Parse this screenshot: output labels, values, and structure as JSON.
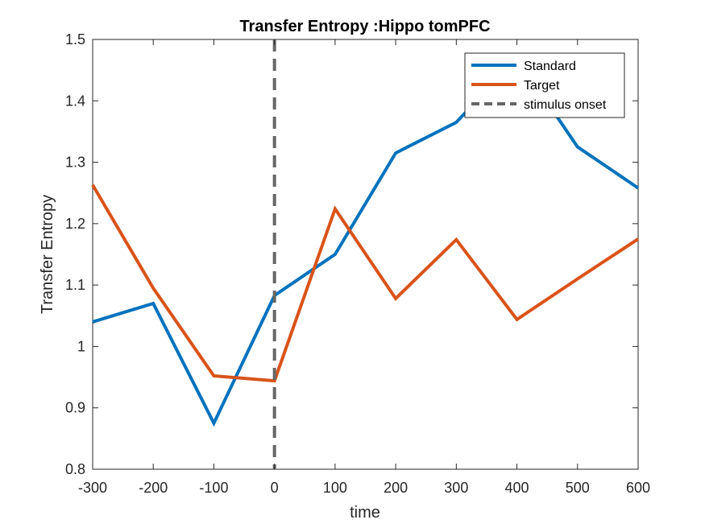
{
  "chart_data": {
    "type": "line",
    "title": "Transfer Entropy :Hippo tomPFC",
    "xlabel": "time",
    "ylabel": "Transfer Entropy",
    "xlim": [
      -300,
      600
    ],
    "ylim": [
      0.8,
      1.5
    ],
    "xticks": [
      -300,
      -200,
      -100,
      0,
      100,
      200,
      300,
      400,
      500,
      600
    ],
    "xtick_labels": [
      "-300",
      "-200",
      "-100",
      "0",
      "100",
      "200",
      "300",
      "400",
      "500",
      "600"
    ],
    "yticks": [
      0.8,
      0.9,
      1.0,
      1.1,
      1.2,
      1.3,
      1.4,
      1.5
    ],
    "ytick_labels": [
      "0.8",
      "0.9",
      "1",
      "1.1",
      "1.2",
      "1.3",
      "1.4",
      "1.5"
    ],
    "x": [
      -300,
      -200,
      -100,
      0,
      100,
      200,
      300,
      400,
      500,
      600
    ],
    "series": [
      {
        "name": "Standard",
        "color": "#0072BD",
        "values": [
          1.04,
          1.07,
          0.875,
          1.083,
          1.15,
          1.315,
          1.365,
          1.47,
          1.325,
          1.258
        ]
      },
      {
        "name": "Target",
        "color": "#D95319",
        "values": [
          1.263,
          1.095,
          0.952,
          0.944,
          1.224,
          1.078,
          1.174,
          1.044,
          1.11,
          1.175
        ]
      }
    ],
    "vline": {
      "name": "stimulus onset",
      "x": 0,
      "color": "#666666",
      "style": "dashed"
    },
    "legend_position": "top-right",
    "grid": false
  }
}
